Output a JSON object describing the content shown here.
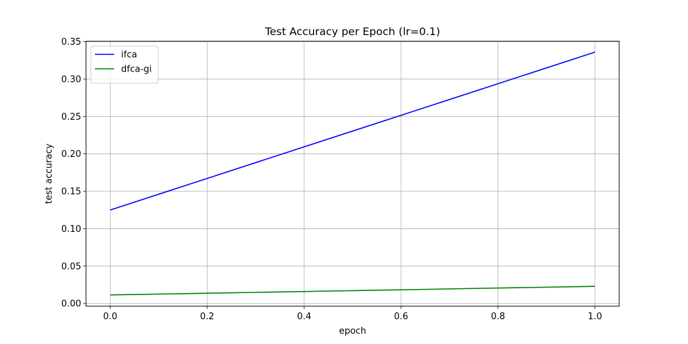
{
  "chart_data": {
    "type": "line",
    "title": "Test Accuracy per Epoch (lr=0.1)",
    "xlabel": "epoch",
    "ylabel": "test accuracy",
    "xlim": [
      -0.05,
      1.05
    ],
    "ylim": [
      -0.0035,
      0.3505
    ],
    "xticks": [
      0.0,
      0.2,
      0.4,
      0.6,
      0.8,
      1.0
    ],
    "xtick_labels": [
      "0.0",
      "0.2",
      "0.4",
      "0.6",
      "0.8",
      "1.0"
    ],
    "yticks": [
      0.0,
      0.05,
      0.1,
      0.15,
      0.2,
      0.25,
      0.3,
      0.35
    ],
    "ytick_labels": [
      "0.00",
      "0.05",
      "0.10",
      "0.15",
      "0.20",
      "0.25",
      "0.30",
      "0.35"
    ],
    "grid": true,
    "legend_position": "top-left",
    "series": [
      {
        "name": "ifca",
        "color": "#0000ff",
        "x": [
          0,
          1
        ],
        "y": [
          0.125,
          0.336
        ]
      },
      {
        "name": "dfca-gi",
        "color": "#008000",
        "x": [
          0,
          1
        ],
        "y": [
          0.0115,
          0.023
        ]
      }
    ]
  }
}
